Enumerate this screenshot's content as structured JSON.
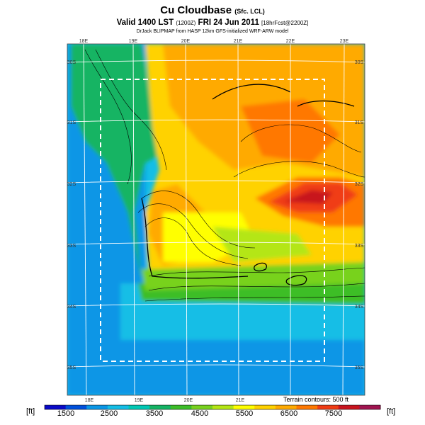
{
  "header": {
    "title": "Cu Cloudbase",
    "title_suffix": "(Sfc. LCL)",
    "valid": "Valid 1400 LST",
    "valid_code": "(1200Z)",
    "date": "FRI 24 Jun 2011",
    "forecast": "[18hrFcst@2200Z]",
    "credit": "DrJack BLIPMAP from HASP 12km GFS-initialized WRF-ARW model"
  },
  "map": {
    "top_lon_labels": [
      "18E",
      "19E",
      "20E",
      "21E",
      "22E",
      "23E"
    ],
    "bottom_lon_labels": [
      "18E",
      "19E",
      "20E",
      "21E"
    ],
    "left_lat_labels": [
      "30S",
      "31S",
      "32S",
      "33S",
      "34S",
      "35S"
    ],
    "right_lat_labels": [
      "30S",
      "31S",
      "32S",
      "33S",
      "34S",
      "35S"
    ],
    "terrain_contours": "Terrain contours: 500 ft"
  },
  "legend": {
    "unit_left": "[ft]",
    "unit_right": "[ft]",
    "tick_labels": [
      "1500",
      "2500",
      "3500",
      "4500",
      "5500",
      "6500",
      "7500"
    ],
    "colors": [
      "#0a0ac8",
      "#0050dc",
      "#0a96e6",
      "#14bee6",
      "#00c8b4",
      "#14b464",
      "#3cbe28",
      "#78d21e",
      "#b4e614",
      "#ffff00",
      "#ffd200",
      "#ffaa00",
      "#ff7800",
      "#f03c14",
      "#c8141e",
      "#a01450"
    ]
  }
}
